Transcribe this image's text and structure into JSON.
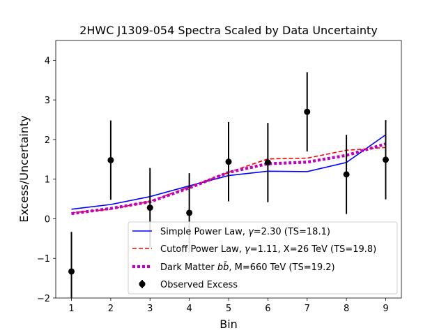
{
  "chart_data": {
    "type": "line",
    "title": "2HWC J1309-054 Spectra Scaled by Data Uncertainty",
    "xlabel": "Bin",
    "ylabel": "Excess/Uncertainty",
    "xlim": [
      0.6,
      9.4
    ],
    "ylim": [
      -2,
      4.5
    ],
    "x_ticks": [
      "1",
      "2",
      "3",
      "4",
      "5",
      "6",
      "7",
      "8",
      "9"
    ],
    "y_ticks": [
      "−2",
      "−1",
      "0",
      "1",
      "2",
      "3",
      "4"
    ],
    "x_tick_values": [
      1,
      2,
      3,
      4,
      5,
      6,
      7,
      8,
      9
    ],
    "y_tick_values": [
      -2,
      -1,
      0,
      1,
      2,
      3,
      4
    ],
    "grid": false,
    "legend_position": "lower-right",
    "series": [
      {
        "name": "Simple Power Law",
        "legend_prefix": "Simple Power Law, ",
        "legend_symbol": "γ",
        "legend_suffix": "=2.30 (TS=18.1)",
        "style": "solid",
        "color": "#0000ff",
        "x": [
          1,
          2,
          3,
          4,
          5,
          6,
          7,
          8,
          9
        ],
        "y": [
          0.24,
          0.36,
          0.56,
          0.83,
          1.09,
          1.2,
          1.19,
          1.42,
          2.12
        ]
      },
      {
        "name": "Cutoff Power Law",
        "legend_prefix": "Cutoff Power Law, ",
        "legend_symbol": "γ",
        "legend_suffix": "=1.11, X=26 TeV (TS=19.8)",
        "style": "dashed",
        "color": "#ff0000",
        "x": [
          1,
          2,
          3,
          4,
          5,
          6,
          7,
          8,
          9
        ],
        "y": [
          0.15,
          0.24,
          0.44,
          0.8,
          1.17,
          1.51,
          1.53,
          1.73,
          1.8
        ]
      },
      {
        "name": "Dark Matter",
        "legend_prefix": "Dark Matter ",
        "legend_symbol": "bb̄",
        "legend_suffix": ", M=660 TeV (TS=19.2)",
        "style": "dotted",
        "color": "#bf00bf",
        "x": [
          1,
          2,
          3,
          4,
          5,
          6,
          7,
          8,
          9
        ],
        "y": [
          0.13,
          0.26,
          0.43,
          0.78,
          1.17,
          1.39,
          1.43,
          1.6,
          1.89
        ]
      }
    ],
    "observed": {
      "name": "Observed Excess",
      "color": "#000000",
      "x": [
        1,
        2,
        3,
        4,
        5,
        6,
        7,
        8,
        9
      ],
      "y": [
        -1.33,
        1.48,
        0.28,
        0.15,
        1.44,
        1.42,
        2.7,
        1.12,
        1.49
      ],
      "yerr": [
        1.0,
        1.0,
        1.0,
        1.0,
        1.0,
        1.0,
        1.0,
        1.0,
        1.0
      ]
    }
  }
}
